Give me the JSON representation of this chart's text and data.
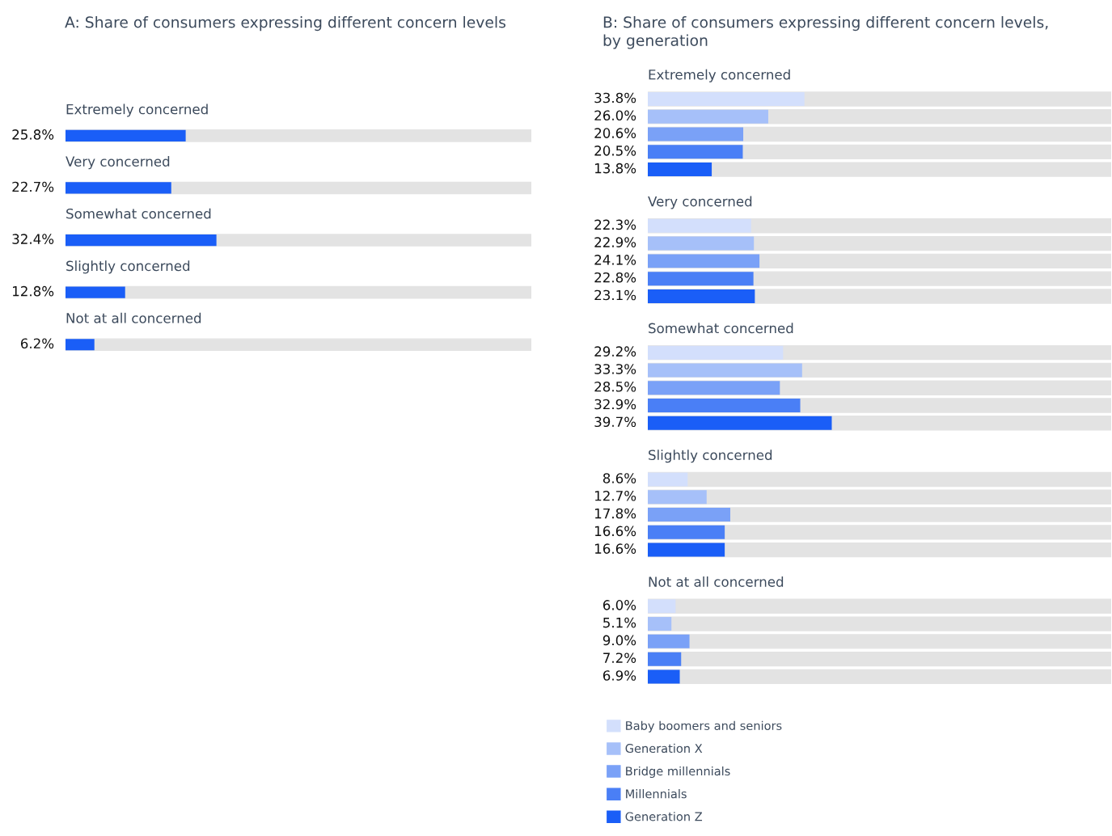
{
  "chart_data": [
    {
      "type": "bar",
      "orientation": "horizontal",
      "title": "A: Share of consumers expressing different concern levels",
      "categories": [
        "Extremely concerned",
        "Very concerned",
        "Somewhat concerned",
        "Slightly concerned",
        "Not at all concerned"
      ],
      "values": [
        25.8,
        22.7,
        32.4,
        12.8,
        6.2
      ],
      "value_labels": [
        "25.8%",
        "22.7%",
        "32.4%",
        "12.8%",
        "6.2%"
      ],
      "color": "#1a5ef7",
      "xlim": [
        0,
        100
      ],
      "legend": false
    },
    {
      "type": "bar",
      "orientation": "horizontal",
      "title": "B: Share of consumers expressing different concern levels,\nby generation",
      "categories": [
        "Extremely concerned",
        "Very concerned",
        "Somewhat concerned",
        "Slightly concerned",
        "Not at all concerned"
      ],
      "series": [
        {
          "name": "Baby boomers and seniors",
          "color": "#d3dffc",
          "values": [
            33.8,
            22.3,
            29.2,
            8.6,
            6.0
          ],
          "value_labels": [
            "33.8%",
            "22.3%",
            "29.2%",
            "8.6%",
            "6.0%"
          ]
        },
        {
          "name": "Generation X",
          "color": "#a6c0f9",
          "values": [
            26.0,
            22.9,
            33.3,
            12.7,
            5.1
          ],
          "value_labels": [
            "26.0%",
            "22.9%",
            "33.3%",
            "12.7%",
            "5.1%"
          ]
        },
        {
          "name": "Bridge millennials",
          "color": "#7aa1f7",
          "values": [
            20.6,
            24.1,
            28.5,
            17.8,
            9.0
          ],
          "value_labels": [
            "20.6%",
            "24.1%",
            "28.5%",
            "17.8%",
            "9.0%"
          ]
        },
        {
          "name": "Millennials",
          "color": "#4a7ff6",
          "values": [
            20.5,
            22.8,
            32.9,
            16.6,
            7.2
          ],
          "value_labels": [
            "20.5%",
            "22.8%",
            "32.9%",
            "16.6%",
            "7.2%"
          ]
        },
        {
          "name": "Generation Z",
          "color": "#1a5ef7",
          "values": [
            13.8,
            23.1,
            39.7,
            16.6,
            6.9
          ],
          "value_labels": [
            "13.8%",
            "23.1%",
            "39.7%",
            "16.6%",
            "6.9%"
          ]
        }
      ],
      "xlim": [
        0,
        100
      ],
      "legend": "bottom"
    }
  ]
}
